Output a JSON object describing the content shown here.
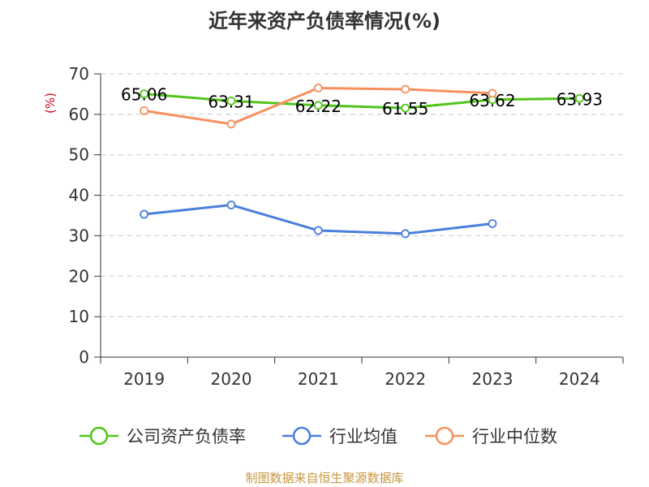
{
  "chart_data": {
    "type": "line",
    "title": "近年来资产负债率情况(%)",
    "ylabel": "(%)",
    "xlabel": "",
    "categories": [
      "2019",
      "2020",
      "2021",
      "2022",
      "2023",
      "2024"
    ],
    "ylim": [
      0,
      70
    ],
    "yticks": [
      0,
      10,
      20,
      30,
      40,
      50,
      60,
      70
    ],
    "grid": true,
    "legend_position": "bottom",
    "series": [
      {
        "name": "公司资产负债率",
        "color": "#52c41a",
        "values": [
          65.06,
          63.31,
          62.22,
          61.55,
          63.62,
          63.93
        ],
        "data_labels": [
          "65.06",
          "63.31",
          "62.22",
          "61.55",
          "63.62",
          "63.93"
        ]
      },
      {
        "name": "行业均值",
        "color": "#4a7fdc",
        "values": [
          35.3,
          37.6,
          31.3,
          30.5,
          33.0,
          null
        ]
      },
      {
        "name": "行业中位数",
        "color": "#f7905e",
        "values": [
          60.9,
          57.6,
          66.5,
          66.2,
          65.2,
          null
        ]
      }
    ]
  },
  "source_text": "制图数据来自恒生聚源数据库"
}
